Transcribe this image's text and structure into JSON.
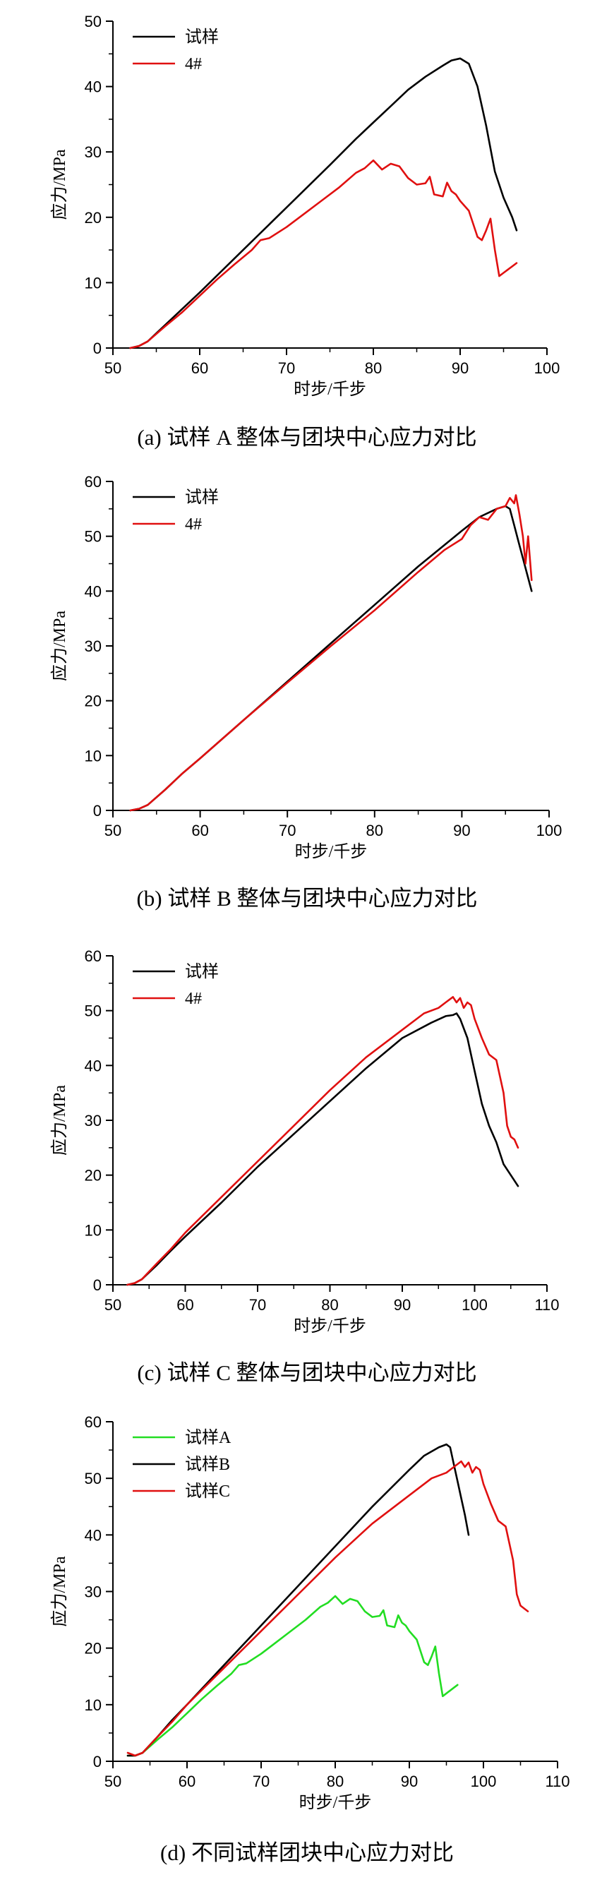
{
  "colors": {
    "black": "#000000",
    "red": "#e01010",
    "green": "#22dd22"
  },
  "chart_data": [
    {
      "type": "line",
      "caption": "(a)  试样 A 整体与团块中心应力对比",
      "xlabel": "时步/千步",
      "ylabel": "应力/MPa",
      "xlim": [
        50,
        100
      ],
      "ylim": [
        0,
        50
      ],
      "xticks": [
        50,
        60,
        70,
        80,
        90,
        100
      ],
      "yticks": [
        0,
        10,
        20,
        30,
        40,
        50
      ],
      "legend_position": "top-left",
      "series": [
        {
          "name": "试样",
          "color": "#000000",
          "x": [
            52,
            53,
            54,
            56,
            58,
            60,
            65,
            70,
            75,
            78,
            80,
            82,
            84,
            86,
            88,
            89,
            90,
            91,
            92,
            93,
            94,
            95,
            96,
            96.5
          ],
          "y": [
            0,
            0.3,
            1,
            3.5,
            6,
            8.5,
            15,
            21.5,
            28,
            32,
            34.5,
            37,
            39.5,
            41.5,
            43.2,
            44,
            44.3,
            43.5,
            40,
            34,
            27,
            23,
            20,
            18
          ]
        },
        {
          "name": "4#",
          "color": "#e01010",
          "x": [
            52,
            53,
            54,
            56,
            58,
            60,
            62,
            64,
            66,
            67,
            68,
            70,
            72,
            74,
            76,
            78,
            79,
            80,
            81,
            82,
            83,
            84,
            85,
            86,
            86.5,
            87,
            88,
            88.5,
            89,
            89.5,
            90,
            91,
            92,
            92.5,
            93,
            93.5,
            94,
            94.5,
            95,
            95.5,
            96,
            96.5
          ],
          "y": [
            0,
            0.3,
            1,
            3.3,
            5.5,
            8,
            10.5,
            12.8,
            15,
            16.5,
            16.8,
            18.5,
            20.5,
            22.5,
            24.5,
            26.8,
            27.5,
            28.7,
            27.3,
            28.2,
            27.8,
            26,
            25,
            25.2,
            26.2,
            23.5,
            23.2,
            25.3,
            24,
            23.5,
            22.5,
            21,
            17,
            16.5,
            18,
            19.8,
            15,
            11,
            11.5,
            12,
            12.5,
            13
          ]
        }
      ]
    },
    {
      "type": "line",
      "caption": "(b)  试样 B 整体与团块中心应力对比",
      "xlabel": "时步/千步",
      "ylabel": "应力/MPa",
      "xlim": [
        50,
        100
      ],
      "ylim": [
        0,
        60
      ],
      "xticks": [
        50,
        60,
        70,
        80,
        90,
        100
      ],
      "yticks": [
        0,
        10,
        20,
        30,
        40,
        50,
        60
      ],
      "legend_position": "top-left",
      "series": [
        {
          "name": "试样",
          "color": "#000000",
          "x": [
            52,
            53,
            54,
            56,
            58,
            60,
            65,
            70,
            75,
            80,
            85,
            90,
            92,
            94,
            95,
            95.5,
            96,
            96.5,
            97,
            97.5,
            98
          ],
          "y": [
            0,
            0.3,
            1,
            3.8,
            6.8,
            9.5,
            16.5,
            23.5,
            30.5,
            37.5,
            44.5,
            51,
            53.5,
            55,
            55.5,
            55,
            52,
            49,
            46,
            43,
            40
          ]
        },
        {
          "name": "4#",
          "color": "#e01010",
          "x": [
            52,
            53,
            54,
            56,
            58,
            60,
            65,
            70,
            75,
            80,
            85,
            88,
            90,
            91,
            92,
            93,
            94,
            95,
            95.5,
            96,
            96.2,
            96.6,
            97,
            97.3,
            97.6,
            98
          ],
          "y": [
            0,
            0.3,
            1,
            3.8,
            6.8,
            9.5,
            16.5,
            23.3,
            30,
            36.5,
            43.5,
            47.5,
            49.5,
            52,
            53.5,
            53,
            55,
            55.5,
            57,
            56,
            57.5,
            54,
            50,
            45,
            50,
            42
          ]
        }
      ]
    },
    {
      "type": "line",
      "caption": "(c)  试样 C 整体与团块中心应力对比",
      "xlabel": "时步/千步",
      "ylabel": "应力/MPa",
      "xlim": [
        50,
        110
      ],
      "ylim": [
        0,
        60
      ],
      "xticks": [
        50,
        60,
        70,
        80,
        90,
        100,
        110
      ],
      "yticks": [
        0,
        10,
        20,
        30,
        40,
        50,
        60
      ],
      "legend_position": "top-left",
      "series": [
        {
          "name": "试样",
          "color": "#000000",
          "x": [
            52,
            53,
            54,
            56,
            58,
            60,
            65,
            70,
            75,
            80,
            85,
            90,
            94,
            96,
            97,
            97.5,
            98,
            99,
            100,
            101,
            102,
            103,
            104,
            105,
            106
          ],
          "y": [
            0,
            0.3,
            1,
            3.5,
            6.2,
            8.8,
            15,
            21.5,
            27.5,
            33.5,
            39.5,
            45,
            47.8,
            49,
            49.2,
            49.5,
            48.5,
            45,
            39,
            33,
            29,
            26,
            22,
            20,
            18
          ]
        },
        {
          "name": "4#",
          "color": "#e01010",
          "x": [
            52,
            53,
            54,
            56,
            58,
            60,
            65,
            70,
            75,
            80,
            85,
            90,
            93,
            95,
            96,
            97,
            97.5,
            98,
            98.5,
            99,
            99.5,
            100,
            101,
            102,
            103,
            104,
            104.5,
            105,
            105.5,
            106
          ],
          "y": [
            0,
            0.3,
            1,
            3.8,
            6.5,
            9.5,
            16,
            22.5,
            29,
            35.5,
            41.5,
            46.5,
            49.5,
            50.5,
            51.5,
            52.5,
            51.5,
            52.3,
            50.5,
            51.5,
            51,
            48.5,
            45,
            42,
            41,
            35,
            29,
            27,
            26.5,
            25
          ]
        }
      ]
    },
    {
      "type": "line",
      "caption": "(d)  不同试样团块中心应力对比",
      "xlabel": "时步/千步",
      "ylabel": "应力/MPa",
      "xlim": [
        50,
        110
      ],
      "ylim": [
        0,
        60
      ],
      "xticks": [
        50,
        60,
        70,
        80,
        90,
        100,
        110
      ],
      "yticks": [
        0,
        10,
        20,
        30,
        40,
        50,
        60
      ],
      "legend_position": "top-left",
      "series": [
        {
          "name": "试样A",
          "color": "#22dd22",
          "x": [
            52,
            53,
            54,
            56,
            58,
            60,
            62,
            64,
            66,
            67,
            68,
            70,
            72,
            74,
            76,
            78,
            79,
            80,
            81,
            82,
            83,
            84,
            85,
            86,
            86.5,
            87,
            88,
            88.5,
            89,
            89.5,
            90,
            91,
            92,
            92.5,
            93,
            93.5,
            94,
            94.5,
            95,
            95.5,
            96,
            96.5
          ],
          "y": [
            1,
            1,
            1.5,
            3.8,
            6,
            8.5,
            11,
            13.3,
            15.5,
            17,
            17.3,
            19,
            21,
            23,
            25,
            27.3,
            28,
            29.2,
            27.8,
            28.7,
            28.3,
            26.5,
            25.5,
            25.7,
            26.7,
            24,
            23.7,
            25.8,
            24.5,
            24,
            23,
            21.5,
            17.5,
            17,
            18.5,
            20.3,
            15.5,
            11.5,
            12,
            12.5,
            13,
            13.5
          ]
        },
        {
          "name": "试样B",
          "color": "#000000",
          "x": [
            52,
            53,
            54,
            56,
            58,
            60,
            65,
            70,
            75,
            80,
            85,
            90,
            92,
            94,
            95,
            95.5,
            96,
            96.5,
            97,
            97.5,
            98
          ],
          "y": [
            1,
            1,
            1.5,
            4.3,
            7.3,
            10,
            17,
            24,
            31,
            38,
            45,
            51.5,
            54,
            55.5,
            56,
            55.5,
            52.5,
            49.5,
            46.5,
            43.5,
            40
          ]
        },
        {
          "name": "试样C",
          "color": "#e01010",
          "x": [
            52,
            53,
            54,
            56,
            58,
            60,
            65,
            70,
            75,
            80,
            85,
            90,
            93,
            95,
            96,
            97,
            97.5,
            98,
            98.5,
            99,
            99.5,
            100,
            101,
            102,
            103,
            104,
            104.5,
            105,
            105.5,
            106
          ],
          "y": [
            1.5,
            1,
            1.5,
            4.3,
            7,
            10,
            16.5,
            23,
            29.5,
            36,
            42,
            47,
            50,
            51,
            52,
            53,
            52,
            52.8,
            51,
            52,
            51.5,
            49,
            45.5,
            42.5,
            41.5,
            35.5,
            29.5,
            27.5,
            27,
            26.5
          ]
        }
      ]
    }
  ]
}
